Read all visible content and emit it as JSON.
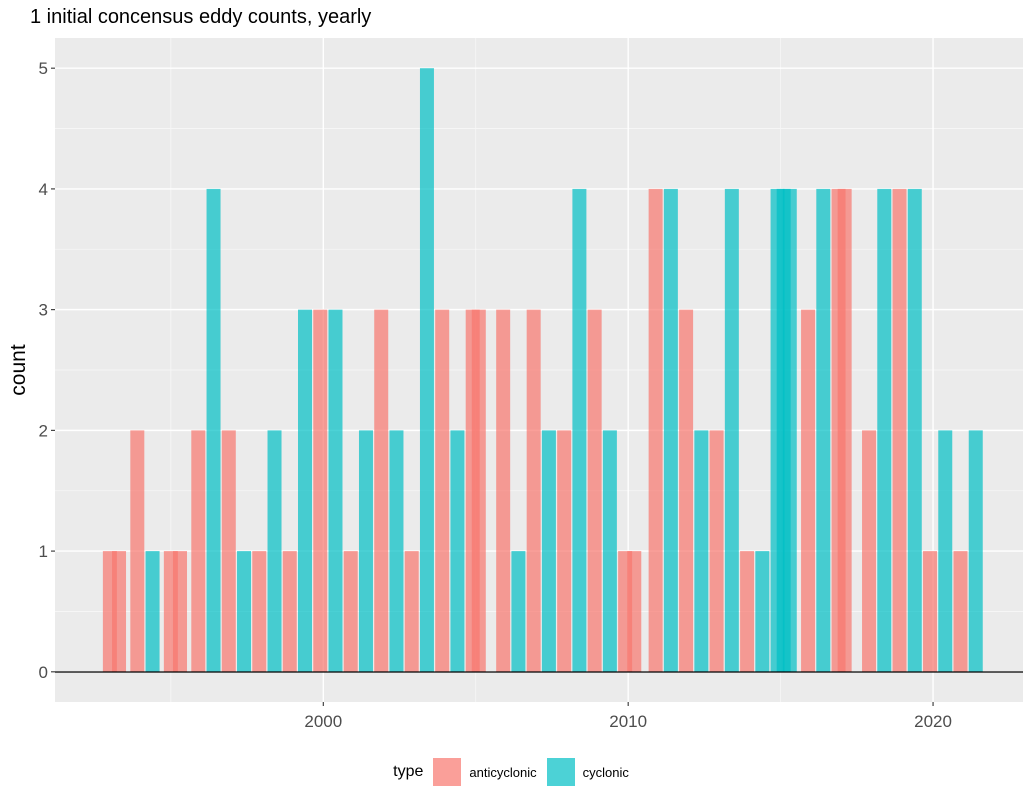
{
  "chart_data": {
    "type": "bar",
    "title": "1 initial concensus eddy counts, yearly",
    "xlabel": "",
    "ylabel": "count",
    "xlim": [
      1991.2,
      2022.95
    ],
    "ylim": [
      -0.25,
      5.25
    ],
    "x_ticks": [
      2000,
      2010,
      2020
    ],
    "y_ticks": [
      0,
      1,
      2,
      3,
      4,
      5
    ],
    "grid": true,
    "legend": {
      "position": "bottom",
      "title": "type"
    },
    "series": [
      {
        "name": "anticyclonic",
        "color": "#F8766D",
        "opacity": 0.7,
        "x": [
          1993.0,
          1993.3,
          1993.9,
          1995.0,
          1995.3,
          1995.9,
          1996.9,
          1997.9,
          1998.9,
          1999.9,
          2000.9,
          2001.9,
          2002.9,
          2003.9,
          2004.9,
          2005.1,
          2005.9,
          2006.9,
          2007.9,
          2008.9,
          2009.9,
          2010.2,
          2010.9,
          2011.9,
          2012.9,
          2013.9,
          2015.9,
          2016.9,
          2017.1,
          2017.9,
          2018.9,
          2019.9,
          2020.9
        ],
        "values": [
          1,
          1,
          2,
          1,
          1,
          2,
          2,
          1,
          1,
          3,
          1,
          3,
          1,
          3,
          3,
          3,
          3,
          3,
          2,
          3,
          1,
          1,
          4,
          3,
          2,
          1,
          3,
          4,
          4,
          2,
          4,
          1,
          1
        ]
      },
      {
        "name": "cyclonic",
        "color": "#00BFC4",
        "opacity": 0.7,
        "x": [
          1994.4,
          1996.4,
          1997.4,
          1998.4,
          1999.4,
          2000.4,
          2001.4,
          2002.4,
          2003.4,
          2004.4,
          2006.4,
          2007.4,
          2008.4,
          2009.4,
          2011.4,
          2012.4,
          2013.4,
          2014.4,
          2014.9,
          2015.1,
          2015.3,
          2016.4,
          2018.4,
          2019.4,
          2020.4,
          2021.4
        ],
        "values": [
          1,
          4,
          1,
          2,
          3,
          3,
          2,
          2,
          5,
          2,
          1,
          2,
          4,
          2,
          4,
          2,
          4,
          1,
          4,
          4,
          4,
          4,
          4,
          4,
          2,
          2
        ]
      }
    ]
  }
}
